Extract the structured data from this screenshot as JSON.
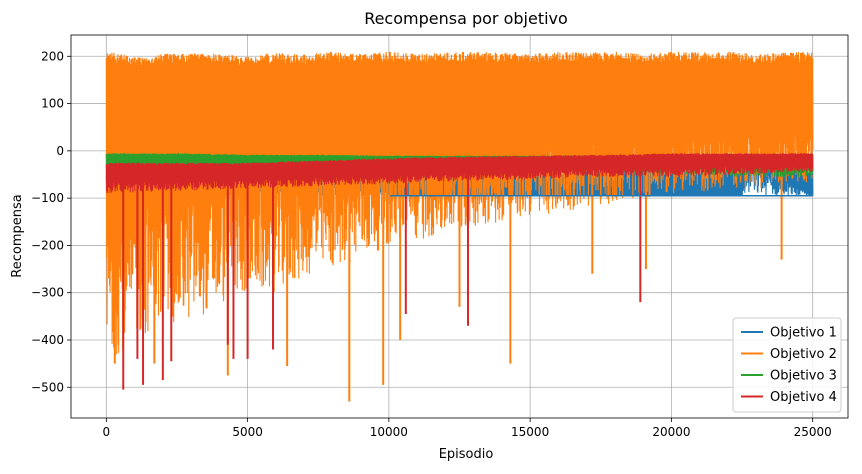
{
  "chart_data": {
    "type": "line",
    "title": "Recompensa por objetivo",
    "xlabel": "Episodio",
    "ylabel": "Recompensa",
    "xlim": [
      -1250,
      26250
    ],
    "ylim": [
      -565,
      245
    ],
    "xticks": [
      0,
      5000,
      10000,
      15000,
      20000,
      25000
    ],
    "xtick_labels": [
      "0",
      "5000",
      "10000",
      "15000",
      "20000",
      "25000"
    ],
    "yticks": [
      -500,
      -400,
      -300,
      -200,
      -100,
      0,
      100,
      200
    ],
    "ytick_labels": [
      "−500",
      "−400",
      "−300",
      "−200",
      "−100",
      "0",
      "100",
      "200"
    ],
    "grid": true,
    "legend_position": "lower right",
    "series": [
      {
        "name": "Objetivo 1",
        "color": "#1f77b4",
        "x": [
          0,
          10000,
          10050,
          16000,
          18000,
          20000,
          22500,
          22600,
          25000
        ],
        "y": [
          -60,
          -60,
          -95,
          -95,
          -95,
          -95,
          -95,
          35,
          -95
        ],
        "lower": [
          -95,
          -95,
          -95,
          -95,
          -95,
          -95,
          -95,
          -95,
          -95
        ],
        "upper": [
          -50,
          -50,
          -45,
          -45,
          -40,
          -40,
          -40,
          -40,
          -40
        ]
      },
      {
        "name": "Objetivo 2",
        "color": "#ff7f0e",
        "x": [
          0,
          1000,
          2000,
          3000,
          4000,
          5000,
          6000,
          7000,
          8000,
          9000,
          10000,
          11000,
          12000,
          13000,
          14000,
          15000,
          16000,
          17000,
          18000,
          19000,
          20000,
          21000,
          22000,
          23000,
          24000,
          25000
        ],
        "y": [
          100,
          95,
          95,
          90,
          95,
          95,
          95,
          90,
          95,
          95,
          100,
          100,
          100,
          100,
          100,
          100,
          100,
          100,
          100,
          100,
          100,
          100,
          100,
          100,
          100,
          100
        ],
        "lower": [
          -450,
          -400,
          -370,
          -360,
          -330,
          -300,
          -300,
          -270,
          -250,
          -230,
          -200,
          -190,
          -180,
          -160,
          -150,
          -140,
          -130,
          -120,
          -110,
          -100,
          -90,
          -90,
          -80,
          -80,
          -70,
          -70
        ],
        "upper": [
          210,
          200,
          205,
          208,
          205,
          200,
          208,
          205,
          210,
          205,
          210,
          205,
          208,
          210,
          208,
          205,
          210,
          208,
          210,
          205,
          210,
          208,
          210,
          205,
          208,
          210
        ],
        "spikes": [
          {
            "x": 300,
            "y": -450
          },
          {
            "x": 1700,
            "y": -450
          },
          {
            "x": 4300,
            "y": -475
          },
          {
            "x": 6400,
            "y": -455
          },
          {
            "x": 8600,
            "y": -530
          },
          {
            "x": 9800,
            "y": -495
          },
          {
            "x": 14300,
            "y": -450
          },
          {
            "x": 10400,
            "y": -400
          },
          {
            "x": 12500,
            "y": -330
          },
          {
            "x": 17200,
            "y": -260
          },
          {
            "x": 19100,
            "y": -250
          },
          {
            "x": 23900,
            "y": -230
          }
        ]
      },
      {
        "name": "Objetivo 3",
        "color": "#2ca02c",
        "x": [
          0,
          2500,
          5000,
          7500,
          10000,
          12500,
          15000,
          17500,
          20000,
          22500,
          25000
        ],
        "y": [
          -20,
          -20,
          -20,
          -20,
          -20,
          -20,
          -20,
          -20,
          -20,
          -20,
          -20
        ],
        "lower": [
          -40,
          -40,
          -40,
          -40,
          -40,
          -40,
          -40,
          -45,
          -50,
          -55,
          -55
        ],
        "upper": [
          -5,
          -5,
          -8,
          -8,
          -10,
          -10,
          -10,
          -10,
          -10,
          -10,
          -10
        ]
      },
      {
        "name": "Objetivo 4",
        "color": "#d62728",
        "x": [
          0,
          2500,
          5000,
          7500,
          10000,
          12500,
          15000,
          17500,
          20000,
          22500,
          25000
        ],
        "y": [
          -50,
          -48,
          -45,
          -42,
          -40,
          -35,
          -30,
          -28,
          -25,
          -22,
          -20
        ],
        "lower": [
          -90,
          -85,
          -80,
          -75,
          -70,
          -65,
          -60,
          -55,
          -55,
          -50,
          -45
        ],
        "upper": [
          -25,
          -25,
          -25,
          -20,
          -15,
          -12,
          -10,
          -8,
          -5,
          -5,
          -5
        ],
        "spikes": [
          {
            "x": 600,
            "y": -505
          },
          {
            "x": 1300,
            "y": -495
          },
          {
            "x": 2000,
            "y": -485
          },
          {
            "x": 2300,
            "y": -445
          },
          {
            "x": 4300,
            "y": -410
          },
          {
            "x": 4500,
            "y": -440
          },
          {
            "x": 5000,
            "y": -440
          },
          {
            "x": 5900,
            "y": -420
          },
          {
            "x": 10600,
            "y": -345
          },
          {
            "x": 12800,
            "y": -370
          },
          {
            "x": 18900,
            "y": -320
          },
          {
            "x": 1100,
            "y": -440
          }
        ]
      }
    ]
  }
}
